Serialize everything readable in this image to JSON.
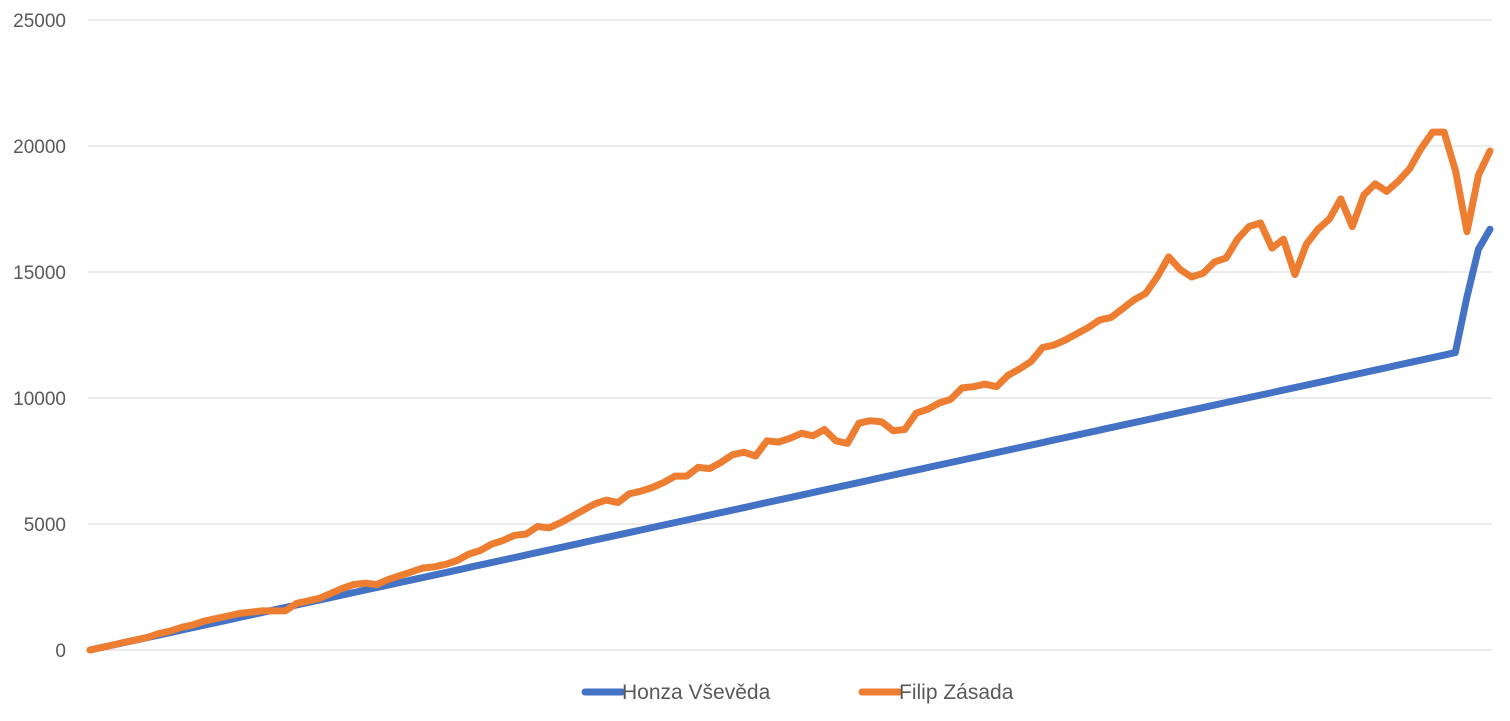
{
  "chart_data": {
    "type": "line",
    "ylim": [
      0,
      25000
    ],
    "yticks": [
      "0",
      "5000",
      "10000",
      "15000",
      "20000",
      "25000"
    ],
    "grid": true,
    "legend_position": "bottom",
    "series": [
      {
        "name": "Honza Vševěda",
        "color": "#4472C4",
        "values": [
          0,
          100,
          200,
          300,
          400,
          500,
          600,
          700,
          800,
          900,
          1000,
          1100,
          1200,
          1300,
          1400,
          1500,
          1600,
          1700,
          1800,
          1900,
          2000,
          2100,
          2200,
          2300,
          2400,
          2500,
          2600,
          2700,
          2800,
          2900,
          3000,
          3100,
          3200,
          3300,
          3400,
          3500,
          3600,
          3700,
          3800,
          3900,
          4000,
          4100,
          4200,
          4300,
          4400,
          4500,
          4600,
          4700,
          4800,
          4900,
          5000,
          5100,
          5200,
          5300,
          5400,
          5500,
          5600,
          5700,
          5800,
          5900,
          6000,
          6100,
          6200,
          6300,
          6400,
          6500,
          6600,
          6700,
          6800,
          6900,
          7000,
          7100,
          7200,
          7300,
          7400,
          7500,
          7600,
          7700,
          7800,
          7900,
          8000,
          8100,
          8200,
          8300,
          8400,
          8500,
          8600,
          8700,
          8800,
          8900,
          9000,
          9100,
          9200,
          9300,
          9400,
          9500,
          9600,
          9700,
          9800,
          9900,
          10000,
          10100,
          10200,
          10300,
          10400,
          10500,
          10600,
          10700,
          10800,
          10900,
          11000,
          11100,
          11200,
          11300,
          11400,
          11500,
          11600,
          11700,
          11800,
          14000,
          15900,
          16700
        ]
      },
      {
        "name": "Filip Zásada",
        "color": "#ED7D31",
        "values": [
          0,
          100,
          200,
          300,
          400,
          500,
          650,
          750,
          900,
          1000,
          1150,
          1250,
          1350,
          1450,
          1500,
          1550,
          1550,
          1550,
          1850,
          1950,
          2050,
          2250,
          2450,
          2600,
          2650,
          2600,
          2800,
          2950,
          3100,
          3250,
          3300,
          3400,
          3550,
          3800,
          3950,
          4200,
          4350,
          4550,
          4600,
          4900,
          4850,
          5050,
          5300,
          5550,
          5800,
          5950,
          5850,
          6200,
          6300,
          6450,
          6650,
          6900,
          6900,
          7250,
          7200,
          7450,
          7750,
          7850,
          7700,
          8300,
          8250,
          8400,
          8600,
          8500,
          8750,
          8300,
          8200,
          9000,
          9100,
          9050,
          8700,
          8750,
          9400,
          9550,
          9800,
          9950,
          10400,
          10450,
          10550,
          10450,
          10900,
          11150,
          11450,
          12000,
          12100,
          12300,
          12550,
          12800,
          13100,
          13200,
          13550,
          13900,
          14150,
          14800,
          15600,
          15100,
          14800,
          14950,
          15400,
          15550,
          16300,
          16800,
          16950,
          15950,
          16300,
          14900,
          16100,
          16700,
          17100,
          17900,
          16800,
          18050,
          18500,
          18200,
          18600,
          19100,
          19900,
          20550,
          20550,
          19000,
          16600,
          18850,
          19800
        ]
      }
    ]
  }
}
